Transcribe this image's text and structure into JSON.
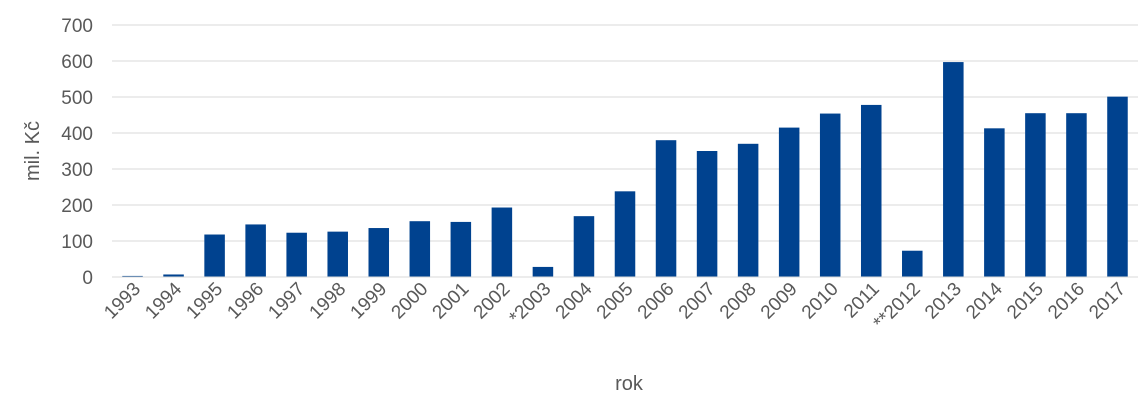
{
  "chart_data": {
    "type": "bar",
    "title": "",
    "xlabel": "rok",
    "ylabel": "mil. Kč",
    "ylim": [
      0,
      700
    ],
    "yticks": [
      0,
      100,
      200,
      300,
      400,
      500,
      600,
      700
    ],
    "grid": true,
    "legend": "none",
    "bar_color": "#00428F",
    "categories": [
      "1993",
      "1994",
      "1995",
      "1996",
      "1997",
      "1998",
      "1999",
      "2000",
      "2001",
      "2002",
      "*2003",
      "2004",
      "2005",
      "2006",
      "2007",
      "2008",
      "2009",
      "2010",
      "2011",
      "**2012",
      "2013",
      "2014",
      "2015",
      "2016",
      "2017"
    ],
    "values": [
      3,
      7,
      118,
      146,
      123,
      126,
      136,
      155,
      153,
      193,
      28,
      169,
      238,
      380,
      350,
      370,
      415,
      454,
      478,
      73,
      597,
      413,
      455,
      455,
      501
    ]
  }
}
